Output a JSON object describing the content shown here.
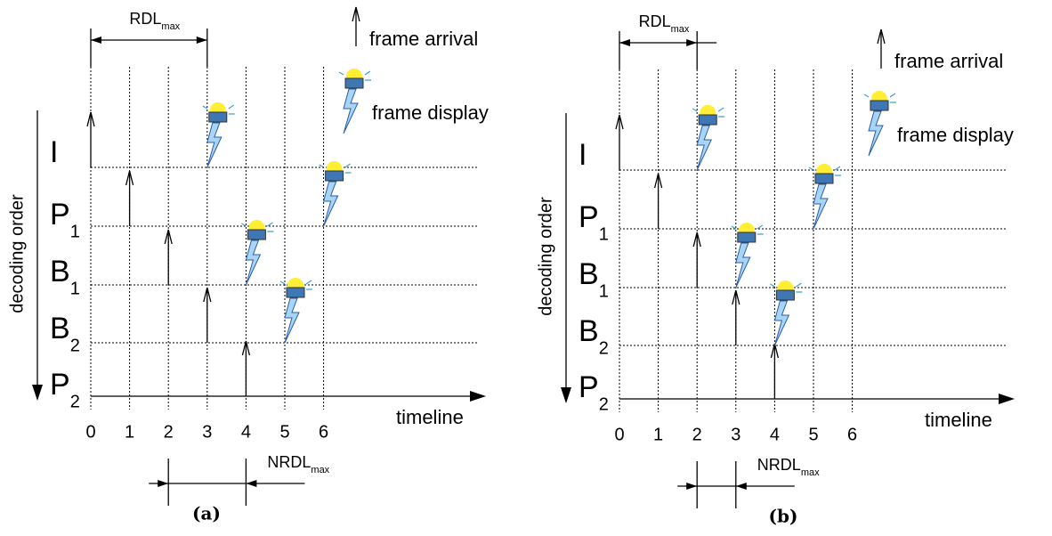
{
  "panels": [
    {
      "caption": "(a)",
      "rdl": {
        "main": "RDL",
        "sub": "max"
      },
      "nrdl": {
        "main": "NRDL",
        "sub": "max"
      },
      "arrival_legend": "frame arrival",
      "display_legend": "frame display",
      "y_axis_label": "decoding order",
      "x_axis_label": "timeline",
      "ticks": [
        "0",
        "1",
        "2",
        "3",
        "4",
        "5",
        "6"
      ],
      "rows": [
        {
          "main": "I"
        },
        {
          "main": "P",
          "sub": "1"
        },
        {
          "main": "B",
          "sub": "1"
        },
        {
          "main": "B",
          "sub": "2"
        },
        {
          "main": "P",
          "sub": "2"
        }
      ]
    },
    {
      "caption": "(b)",
      "rdl": {
        "main": "RDL",
        "sub": "max"
      },
      "nrdl": {
        "main": "NRDL",
        "sub": "max"
      },
      "arrival_legend": "frame arrival",
      "display_legend": "frame display",
      "y_axis_label": "decoding order",
      "x_axis_label": "timeline",
      "ticks": [
        "0",
        "1",
        "2",
        "3",
        "4",
        "5",
        "6"
      ],
      "rows": [
        {
          "main": "I"
        },
        {
          "main": "P",
          "sub": "1"
        },
        {
          "main": "B",
          "sub": "1"
        },
        {
          "main": "B",
          "sub": "2"
        },
        {
          "main": "P",
          "sub": "2"
        }
      ]
    }
  ]
}
